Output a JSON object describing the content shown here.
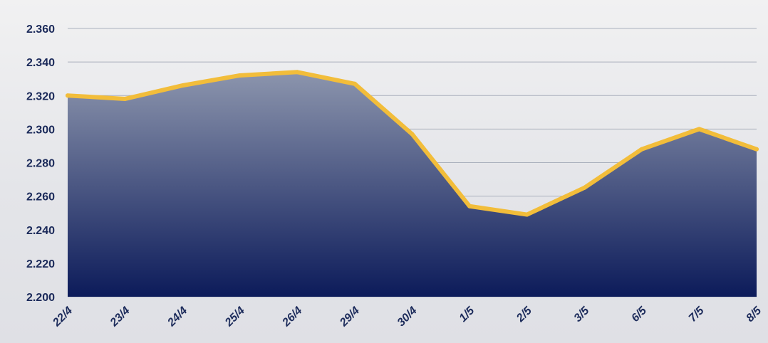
{
  "colors": {
    "line": "#f2bd3a",
    "area_top": "#8c95ad",
    "area_bottom": "#0c1b5a",
    "text": "#1b2a5a",
    "grid": "#aab0bd"
  },
  "chart_data": {
    "type": "area",
    "categories": [
      "22/4",
      "23/4",
      "24/4",
      "25/4",
      "26/4",
      "29/4",
      "30/4",
      "1/5",
      "2/5",
      "3/5",
      "6/5",
      "7/5",
      "8/5"
    ],
    "values": [
      2320,
      2318,
      2326,
      2332,
      2334,
      2327,
      2297,
      2254,
      2249,
      2265,
      2288,
      2300,
      2288
    ],
    "ylim": [
      2200,
      2360
    ],
    "yticks": [
      2200,
      2220,
      2240,
      2260,
      2280,
      2300,
      2320,
      2340,
      2360
    ],
    "ytick_labels": [
      "2.200",
      "2.220",
      "2.240",
      "2.260",
      "2.280",
      "2.300",
      "2.320",
      "2.340",
      "2.360"
    ],
    "grid": true,
    "title": "",
    "xlabel": "",
    "ylabel": ""
  }
}
